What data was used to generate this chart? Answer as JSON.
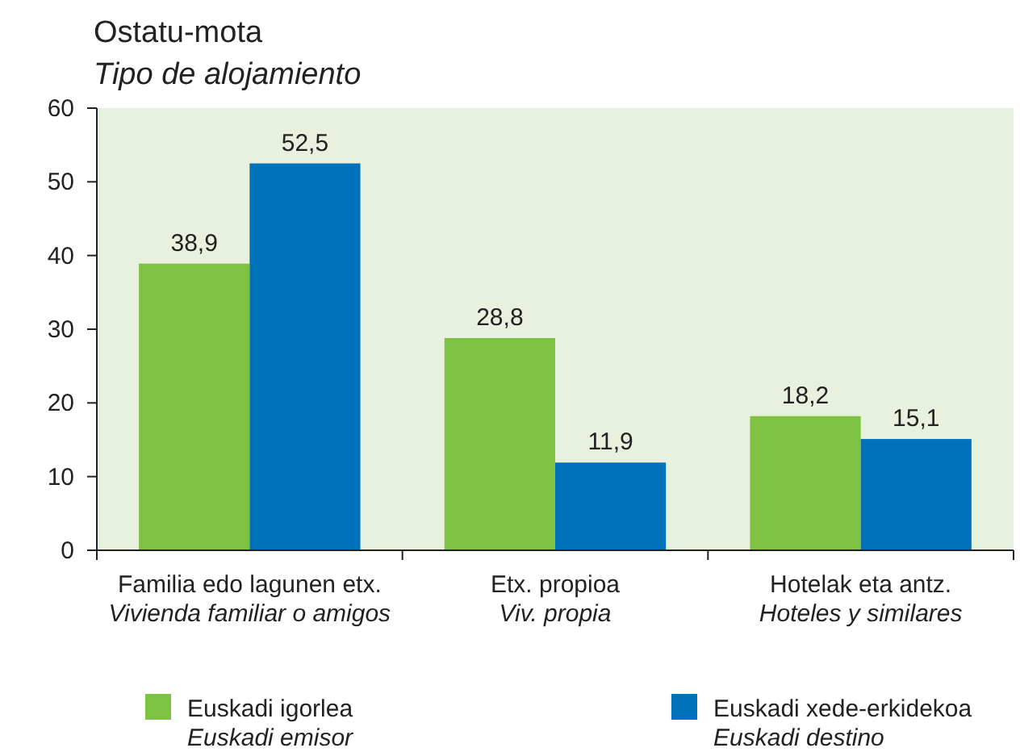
{
  "chart_data": {
    "type": "bar",
    "title": "Ostatu-mota",
    "subtitle": "Tipo de alojamiento",
    "categories": [
      "Familia edo lagunen etx.\nVivienda familiar o amigos",
      "Etx. propioa\nViv. propia",
      "Hotelak eta antz.\nHoteles y similares"
    ],
    "series": [
      {
        "name": "Euskadi igorlea\nEuskadi emisor",
        "color": "#7dc242",
        "values": [
          38.9,
          28.8,
          18.2
        ],
        "value_labels": [
          "38,9",
          "28,8",
          "18,2"
        ]
      },
      {
        "name": "Euskadi xede-erkidekoa\nEuskadi destino",
        "color": "#0072bc",
        "values": [
          52.5,
          11.9,
          15.1
        ],
        "value_labels": [
          "52,5",
          "11,9",
          "15,1"
        ]
      }
    ],
    "ylim": [
      0,
      60
    ],
    "yticks": [
      0,
      10,
      20,
      30,
      40,
      50,
      60
    ],
    "grid": false,
    "legend": "bottom"
  }
}
